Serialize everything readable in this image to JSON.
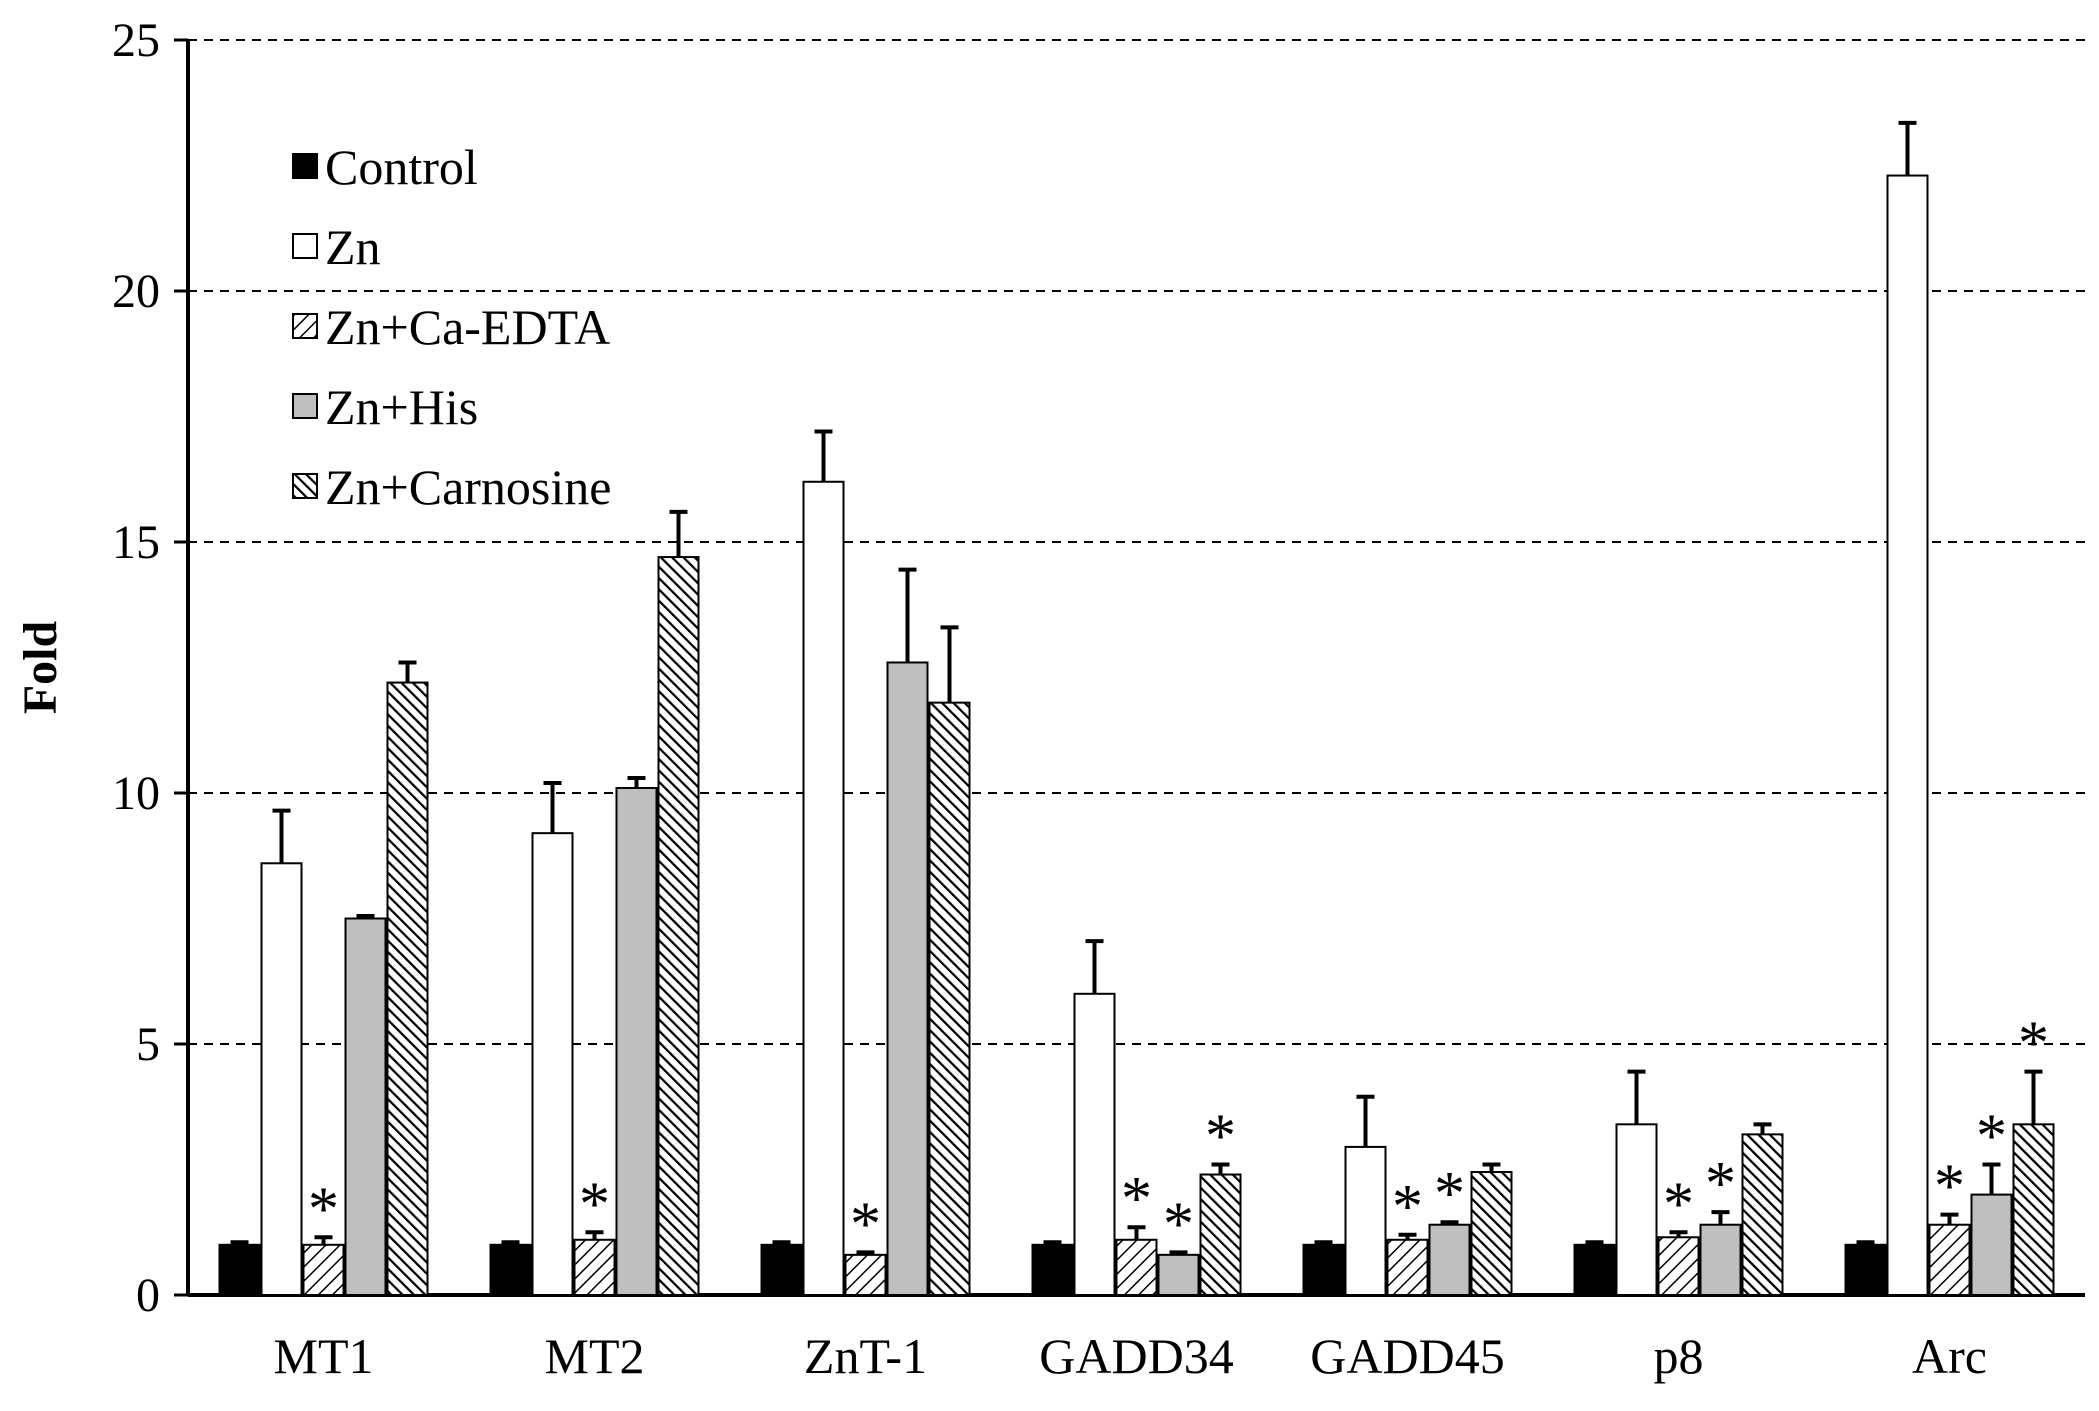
{
  "chart_data": {
    "type": "bar",
    "title": "",
    "xlabel": "",
    "ylabel": "Fold",
    "ylim": [
      0,
      25
    ],
    "yticks": [
      0,
      5,
      10,
      15,
      20,
      25
    ],
    "grid": "horizontal dashed",
    "legend_position": "top-left",
    "categories": [
      "MT1",
      "MT2",
      "ZnT-1",
      "GADD34",
      "GADD45",
      "p8",
      "Arc"
    ],
    "significance_marker": "*",
    "series": [
      {
        "name": "Control",
        "fill": "solid",
        "color": "#000000",
        "values": [
          1.0,
          1.0,
          1.0,
          1.0,
          1.0,
          1.0,
          1.0
        ],
        "errors": [
          0.05,
          0.05,
          0.05,
          0.05,
          0.05,
          0.05,
          0.05
        ],
        "significant": [
          false,
          false,
          false,
          false,
          false,
          false,
          false
        ]
      },
      {
        "name": "Zn",
        "fill": "white",
        "color": "#ffffff",
        "values": [
          8.6,
          9.2,
          16.2,
          6.0,
          2.95,
          3.4,
          22.3
        ],
        "errors": [
          1.05,
          1.0,
          1.0,
          1.05,
          1.0,
          1.05,
          1.05
        ],
        "significant": [
          false,
          false,
          false,
          false,
          false,
          false,
          false
        ]
      },
      {
        "name": "Zn+Ca-EDTA",
        "fill": "sparse-hatch",
        "color": "#ffffff",
        "values": [
          1.0,
          1.1,
          0.8,
          1.1,
          1.1,
          1.15,
          1.4
        ],
        "errors": [
          0.15,
          0.15,
          0.05,
          0.25,
          0.1,
          0.1,
          0.2
        ],
        "significant": [
          true,
          true,
          true,
          true,
          true,
          true,
          true
        ]
      },
      {
        "name": "Zn+His",
        "fill": "gray",
        "color": "#bfbfbf",
        "values": [
          7.5,
          10.1,
          12.6,
          0.8,
          1.4,
          1.4,
          2.0
        ],
        "errors": [
          0.05,
          0.2,
          1.85,
          0.05,
          0.05,
          0.25,
          0.6
        ],
        "significant": [
          false,
          false,
          false,
          true,
          true,
          true,
          true
        ]
      },
      {
        "name": "Zn+Carnosine",
        "fill": "dense-hatch",
        "color": "#000000",
        "values": [
          12.2,
          14.7,
          11.8,
          2.4,
          2.45,
          3.2,
          3.4
        ],
        "errors": [
          0.4,
          0.9,
          1.5,
          0.2,
          0.15,
          0.2,
          1.05
        ],
        "significant": [
          false,
          false,
          false,
          true,
          false,
          false,
          true
        ]
      }
    ]
  }
}
